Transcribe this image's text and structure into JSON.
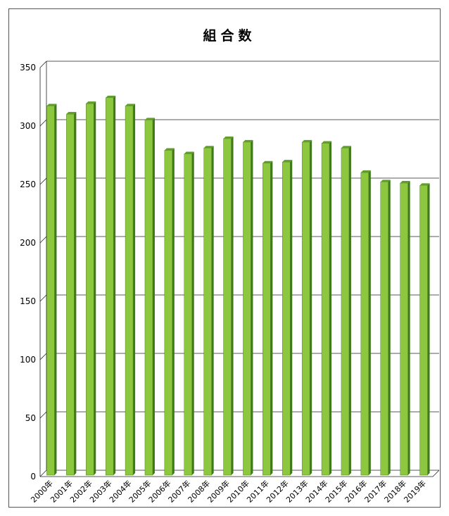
{
  "chart_data": {
    "type": "bar",
    "title": "組合数",
    "xlabel": "",
    "ylabel": "",
    "ylim": [
      0,
      350
    ],
    "yticks": [
      0,
      50,
      100,
      150,
      200,
      250,
      300,
      350
    ],
    "grid": true,
    "categories": [
      "2000年",
      "2001年",
      "2002年",
      "2003年",
      "2004年",
      "2005年",
      "2006年",
      "2007年",
      "2008年",
      "2009年",
      "2010年",
      "2011年",
      "2012年",
      "2013年",
      "2014年",
      "2015年",
      "2016年",
      "2017年",
      "2018年",
      "2019年"
    ],
    "values": [
      316,
      309,
      318,
      323,
      316,
      304,
      278,
      275,
      280,
      288,
      285,
      267,
      268,
      285,
      284,
      280,
      259,
      251,
      250,
      248
    ],
    "colors": {
      "bar_front": "#8dc63f",
      "bar_side": "#3f7a1a",
      "bar_top": "#5f9e2b"
    }
  }
}
